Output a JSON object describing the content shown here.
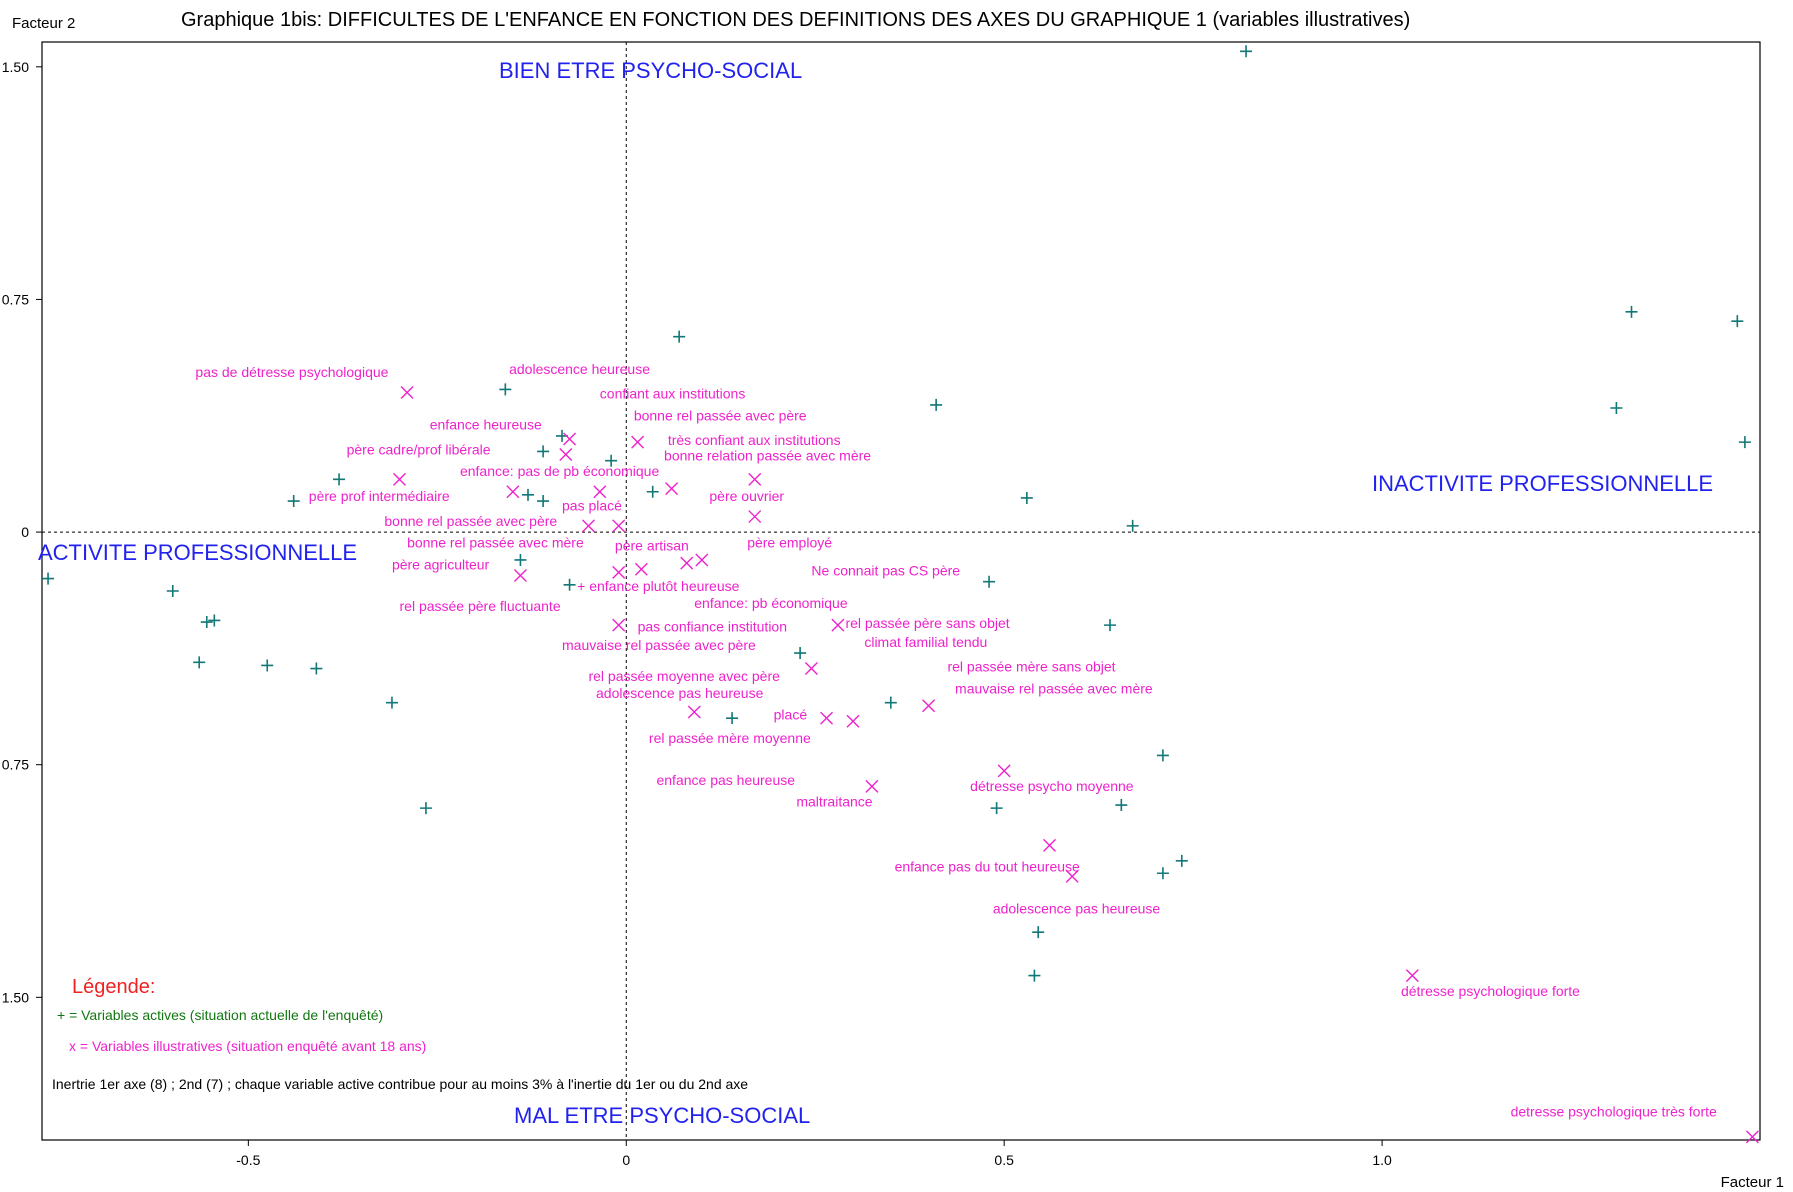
{
  "chart_data": {
    "type": "scatter",
    "title": "Graphique 1bis: DIFFICULTES DE L'ENFANCE EN FONCTION DES DEFINITIONS DES AXES DU GRAPHIQUE 1 (variables illustratives)",
    "xlabel": "Facteur 1",
    "ylabel": "Facteur 2",
    "xlim": [
      -0.773,
      1.5
    ],
    "ylim": [
      -1.96,
      1.58
    ],
    "x_ticks": [
      {
        "v": -0.5,
        "t": "-0.5"
      },
      {
        "v": 0,
        "t": "0"
      },
      {
        "v": 0.5,
        "t": "0.5"
      },
      {
        "v": 1.0,
        "t": "1.0"
      }
    ],
    "y_ticks": [
      {
        "v": 1.5,
        "t": "1.50"
      },
      {
        "v": 0.75,
        "t": "0.75"
      },
      {
        "v": 0,
        "t": "0"
      },
      {
        "v": -0.75,
        "t": "0.75"
      },
      {
        "v": -1.5,
        "t": "1.50"
      }
    ],
    "axis_names": {
      "top": "BIEN ETRE PSYCHO-SOCIAL",
      "bottom": "MAL ETRE PSYCHO-SOCIAL",
      "left": "ACTIVITE PROFESSIONNELLE",
      "right": "INACTIVITE PROFESSIONNELLE"
    },
    "active_points": [
      [
        0.82,
        1.55
      ],
      [
        1.33,
        0.71
      ],
      [
        1.47,
        0.68
      ],
      [
        1.31,
        0.4
      ],
      [
        1.48,
        0.29
      ],
      [
        0.07,
        0.63
      ],
      [
        0.41,
        0.41
      ],
      [
        -0.16,
        0.46
      ],
      [
        0.53,
        0.11
      ],
      [
        0.67,
        0.02
      ],
      [
        -0.38,
        0.17
      ],
      [
        -0.44,
        0.1
      ],
      [
        -0.11,
        0.26
      ],
      [
        -0.085,
        0.31
      ],
      [
        -0.02,
        0.23
      ],
      [
        0.035,
        0.13
      ],
      [
        -0.13,
        0.12
      ],
      [
        -0.11,
        0.1
      ],
      [
        -0.765,
        -0.15
      ],
      [
        -0.6,
        -0.19
      ],
      [
        -0.555,
        -0.29
      ],
      [
        -0.545,
        -0.285
      ],
      [
        -0.565,
        -0.42
      ],
      [
        -0.475,
        -0.43
      ],
      [
        -0.41,
        -0.44
      ],
      [
        -0.31,
        -0.55
      ],
      [
        -0.265,
        -0.89
      ],
      [
        -0.14,
        -0.09
      ],
      [
        -0.075,
        -0.17
      ],
      [
        0.23,
        -0.39
      ],
      [
        0.35,
        -0.55
      ],
      [
        0.14,
        -0.6
      ],
      [
        0.48,
        -0.16
      ],
      [
        0.64,
        -0.3
      ],
      [
        0.71,
        -0.72
      ],
      [
        0.49,
        -0.89
      ],
      [
        0.655,
        -0.88
      ],
      [
        0.735,
        -1.06
      ],
      [
        0.71,
        -1.1
      ],
      [
        0.545,
        -1.29
      ],
      [
        0.54,
        -1.43
      ]
    ],
    "illustrative_points": [
      [
        -0.29,
        0.45
      ],
      [
        -0.075,
        0.3
      ],
      [
        0.015,
        0.29
      ],
      [
        -0.08,
        0.25
      ],
      [
        -0.3,
        0.17
      ],
      [
        0.17,
        0.17
      ],
      [
        0.06,
        0.14
      ],
      [
        -0.15,
        0.13
      ],
      [
        -0.035,
        0.13
      ],
      [
        0.17,
        0.05
      ],
      [
        -0.05,
        0.02
      ],
      [
        -0.01,
        0.02
      ],
      [
        -0.14,
        -0.14
      ],
      [
        -0.01,
        -0.13
      ],
      [
        0.02,
        -0.12
      ],
      [
        0.08,
        -0.1
      ],
      [
        0.1,
        -0.09
      ],
      [
        0.28,
        -0.3
      ],
      [
        -0.01,
        -0.3
      ],
      [
        0.245,
        -0.44
      ],
      [
        0.09,
        -0.58
      ],
      [
        0.265,
        -0.6
      ],
      [
        0.3,
        -0.61
      ],
      [
        0.4,
        -0.56
      ],
      [
        0.5,
        -0.77
      ],
      [
        0.325,
        -0.82
      ],
      [
        0.56,
        -1.01
      ],
      [
        0.59,
        -1.11
      ],
      [
        1.04,
        -1.43
      ],
      [
        1.49,
        -1.95
      ]
    ],
    "labels": [
      {
        "x": -0.57,
        "y": 0.5,
        "t": "pas de détresse psychologique"
      },
      {
        "x": -0.155,
        "y": 0.51,
        "t": "adolescence heureuse"
      },
      {
        "x": -0.035,
        "y": 0.43,
        "t": "confiant aux institutions"
      },
      {
        "x": 0.01,
        "y": 0.36,
        "t": "bonne rel passée avec père"
      },
      {
        "x": -0.26,
        "y": 0.33,
        "t": "enfance heureuse"
      },
      {
        "x": 0.055,
        "y": 0.28,
        "t": "très confiant aux institutions"
      },
      {
        "x": -0.37,
        "y": 0.25,
        "t": "père cadre/prof libérale"
      },
      {
        "x": 0.05,
        "y": 0.23,
        "t": "bonne relation passée avec mère"
      },
      {
        "x": -0.22,
        "y": 0.18,
        "t": "enfance: pas de pb économique"
      },
      {
        "x": -0.42,
        "y": 0.1,
        "t": "père prof intermédiaire"
      },
      {
        "x": 0.11,
        "y": 0.1,
        "t": "père ouvrier"
      },
      {
        "x": -0.085,
        "y": 0.07,
        "t": "pas placé"
      },
      {
        "x": -0.32,
        "y": 0.02,
        "t": "bonne rel passée avec père"
      },
      {
        "x": -0.29,
        "y": -0.05,
        "t": "bonne rel passée avec mère"
      },
      {
        "x": 0.16,
        "y": -0.05,
        "t": "père employé"
      },
      {
        "x": -0.015,
        "y": -0.06,
        "t": "père artisan"
      },
      {
        "x": -0.31,
        "y": -0.12,
        "t": "père agriculteur"
      },
      {
        "x": 0.245,
        "y": -0.14,
        "t": "Ne connait pas CS père"
      },
      {
        "x": -0.065,
        "y": -0.19,
        "t": "+ enfance plutôt heureuse"
      },
      {
        "x": 0.09,
        "y": -0.245,
        "t": "enfance: pb économique"
      },
      {
        "x": -0.3,
        "y": -0.255,
        "t": "rel passée père fluctuante"
      },
      {
        "x": 0.29,
        "y": -0.31,
        "t": "rel passée père sans objet"
      },
      {
        "x": 0.015,
        "y": -0.32,
        "t": "pas confiance institution"
      },
      {
        "x": 0.315,
        "y": -0.37,
        "t": "climat familial tendu"
      },
      {
        "x": -0.085,
        "y": -0.38,
        "t": "mauvaise rel passée avec père"
      },
      {
        "x": 0.425,
        "y": -0.45,
        "t": "rel passée mère sans objet"
      },
      {
        "x": -0.05,
        "y": -0.48,
        "t": "rel passée moyenne avec père"
      },
      {
        "x": 0.435,
        "y": -0.52,
        "t": "mauvaise rel passée avec mère"
      },
      {
        "x": -0.04,
        "y": -0.535,
        "t": "adolescence pas heureuse"
      },
      {
        "x": 0.195,
        "y": -0.605,
        "t": "placé"
      },
      {
        "x": 0.03,
        "y": -0.68,
        "t": "rel passée mère moyenne"
      },
      {
        "x": 0.04,
        "y": -0.815,
        "t": "enfance pas heureuse"
      },
      {
        "x": 0.455,
        "y": -0.835,
        "t": "détresse psycho moyenne"
      },
      {
        "x": 0.225,
        "y": -0.885,
        "t": "maltraitance"
      },
      {
        "x": 0.355,
        "y": -1.095,
        "t": "enfance pas du tout heureuse"
      },
      {
        "x": 0.485,
        "y": -1.23,
        "t": "adolescence pas heureuse"
      },
      {
        "x": 1.025,
        "y": -1.495,
        "t": "détresse psychologique forte"
      },
      {
        "x": 1.17,
        "y": -1.885,
        "t": "detresse psychologique très forte"
      }
    ],
    "legend": {
      "title": "Légende:",
      "active": "+ = Variables actives (situation actuelle de l'enquêté)",
      "illustrative": "x = Variables illustratives (situation enquêté avant 18 ans)"
    },
    "note": "Inertrie 1er axe (8) ; 2nd (7) ; chaque variable active contribue pour au moins 3% à l'inertie du 1er ou du 2nd axe",
    "colors": {
      "active": "#117777",
      "illustrative": "#ee22cc",
      "axis_names": "#2222ee",
      "legend_title": "#ee2222",
      "legend_active": "#117711"
    }
  }
}
